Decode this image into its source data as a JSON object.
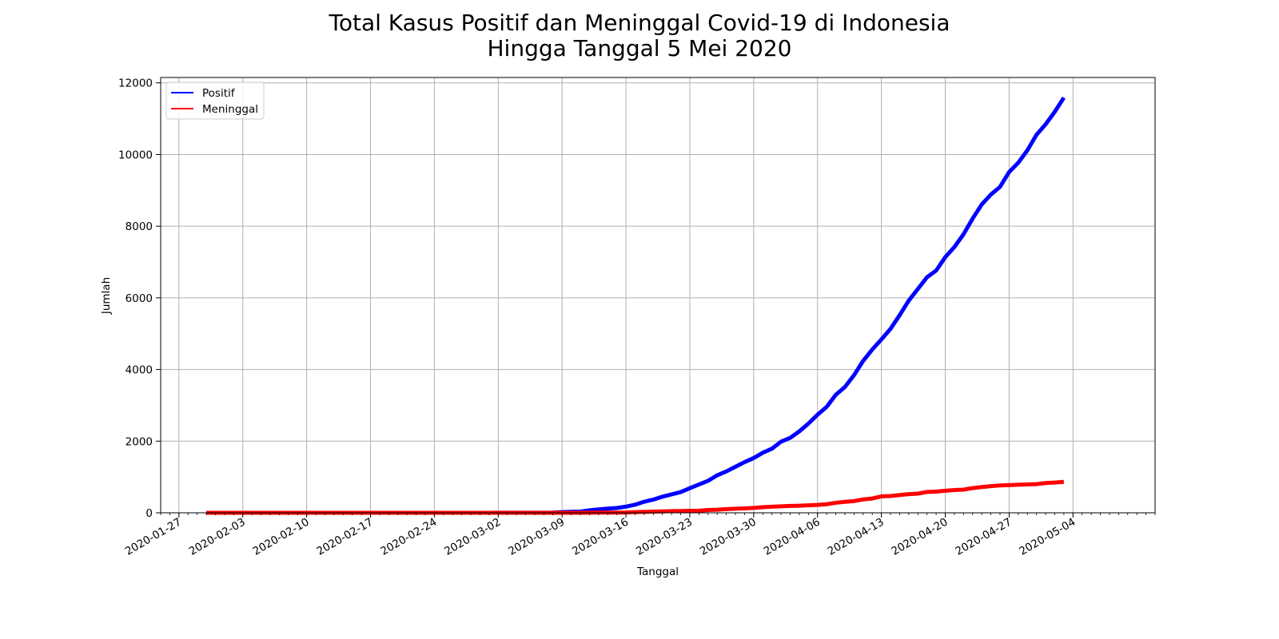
{
  "chart_data": {
    "type": "line",
    "title_line1": "Total Kasus Positif dan Meninggal Covid-19 di Indonesia",
    "title_line2": "Hingga Tanggal 5 Mei 2020",
    "xlabel": "Tanggal",
    "ylabel": "Jumlah",
    "x_start": "2020-01-30",
    "xlim": [
      "2020-01-25",
      "2020-05-13"
    ],
    "ylim": [
      0,
      12150
    ],
    "x_ticks": [
      "2020-01-27",
      "2020-02-03",
      "2020-02-10",
      "2020-02-17",
      "2020-02-24",
      "2020-03-02",
      "2020-03-09",
      "2020-03-16",
      "2020-03-23",
      "2020-03-30",
      "2020-04-06",
      "2020-04-13",
      "2020-04-20",
      "2020-04-27",
      "2020-05-04"
    ],
    "y_ticks": [
      "0",
      "2000",
      "4000",
      "6000",
      "8000",
      "10000",
      "12000"
    ],
    "grid": true,
    "legend_position": "top-left",
    "colors": {
      "positif": "#0000ff",
      "meninggal": "#ff0000",
      "grid": "#b0b0b0"
    },
    "series": [
      {
        "name": "Positif",
        "values": [
          0,
          0,
          0,
          0,
          0,
          0,
          0,
          0,
          0,
          0,
          0,
          0,
          0,
          0,
          0,
          0,
          0,
          0,
          0,
          0,
          0,
          0,
          0,
          0,
          0,
          0,
          0,
          0,
          0,
          0,
          0,
          0,
          2,
          2,
          2,
          2,
          4,
          4,
          6,
          19,
          27,
          34,
          69,
          96,
          117,
          134,
          172,
          227,
          309,
          369,
          450,
          514,
          579,
          686,
          790,
          893,
          1046,
          1155,
          1285,
          1414,
          1528,
          1677,
          1790,
          1986,
          2092,
          2273,
          2491,
          2738,
          2956,
          3293,
          3512,
          3842,
          4241,
          4557,
          4839,
          5136,
          5516,
          5923,
          6248,
          6575,
          6760,
          7135,
          7418,
          7775,
          8211,
          8607,
          8882,
          9096,
          9511,
          9771,
          10118,
          10551,
          10843,
          11192,
          11587
        ]
      },
      {
        "name": "Meninggal",
        "values": [
          0,
          0,
          0,
          0,
          0,
          0,
          0,
          0,
          0,
          0,
          0,
          0,
          0,
          0,
          0,
          0,
          0,
          0,
          0,
          0,
          0,
          0,
          0,
          0,
          0,
          0,
          0,
          0,
          0,
          0,
          0,
          0,
          0,
          0,
          0,
          0,
          0,
          0,
          0,
          0,
          0,
          1,
          4,
          5,
          5,
          5,
          7,
          19,
          25,
          32,
          38,
          48,
          49,
          55,
          58,
          78,
          87,
          102,
          114,
          122,
          136,
          157,
          170,
          181,
          191,
          198,
          209,
          221,
          240,
          280,
          306,
          327,
          373,
          399,
          459,
          469,
          496,
          520,
          535,
          582,
          590,
          616,
          635,
          647,
          689,
          720,
          743,
          765,
          773,
          784,
          792,
          800,
          831,
          845,
          864
        ]
      }
    ]
  }
}
